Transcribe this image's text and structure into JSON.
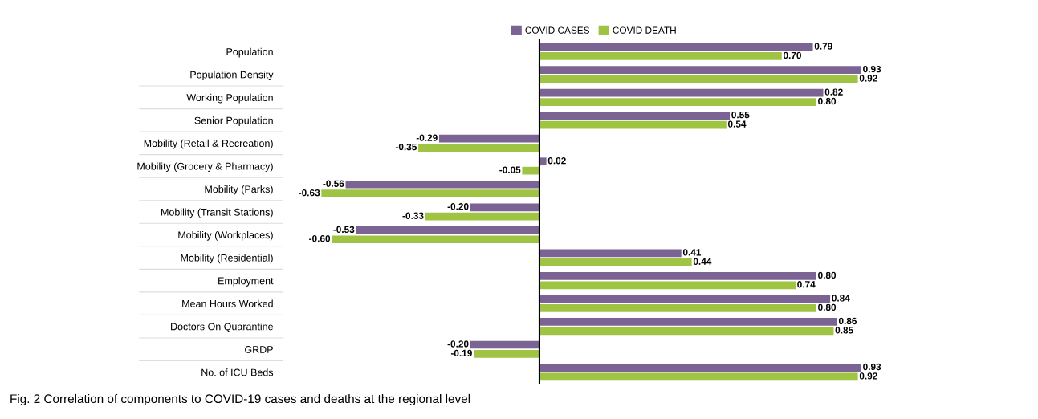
{
  "chart_data": {
    "type": "bar",
    "orientation": "horizontal",
    "categories": [
      "Population",
      "Population Density",
      "Working Population",
      "Senior Population",
      "Mobility (Retail & Recreation)",
      "Mobility (Grocery & Pharmacy)",
      "Mobility (Parks)",
      "Mobility (Transit Stations)",
      "Mobility (Workplaces)",
      "Mobility (Residential)",
      "Employment",
      "Mean Hours Worked",
      "Doctors On Quarantine",
      "GRDP",
      "No. of ICU Beds"
    ],
    "series": [
      {
        "name": "COVID CASES",
        "color": "#7b6394",
        "values": [
          0.79,
          0.93,
          0.82,
          0.55,
          -0.29,
          0.02,
          -0.56,
          -0.2,
          -0.53,
          0.41,
          0.8,
          0.84,
          0.86,
          -0.2,
          0.93
        ],
        "value_labels": [
          "0.79",
          "0.93",
          "0.82",
          "0.55",
          "-0.29",
          "0.02",
          "-0.56",
          "-0.20",
          "-0.53",
          "0.41",
          "0.80",
          "0.84",
          "0.86",
          "-0.20",
          "0.93"
        ]
      },
      {
        "name": "COVID DEATH",
        "color": "#9fc443",
        "values": [
          0.7,
          0.92,
          0.8,
          0.54,
          -0.35,
          -0.05,
          -0.63,
          -0.33,
          -0.6,
          0.44,
          0.74,
          0.8,
          0.85,
          -0.19,
          0.92
        ],
        "value_labels": [
          "0.70",
          "0.92",
          "0.80",
          "0.54",
          "-0.35",
          "-0.05",
          "-0.63",
          "-0.33",
          "-0.60",
          "0.44",
          "0.74",
          "0.80",
          "0.85",
          "-0.19",
          "0.92"
        ]
      }
    ],
    "legend": "top",
    "grid": false,
    "annotations": [
      "Fig. 2 Correlation of components to COVID-19 cases and deaths at the regional level"
    ]
  }
}
